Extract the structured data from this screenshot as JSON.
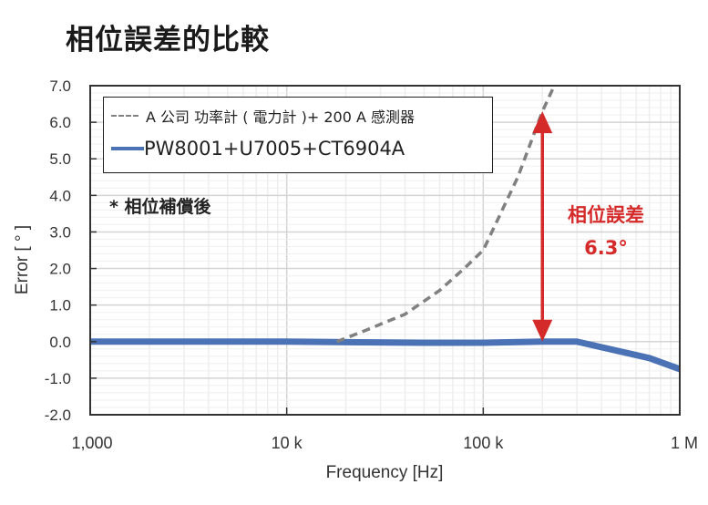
{
  "title": "相位誤差的比較",
  "note": "* 相位補償後",
  "annotation": {
    "label": "相位誤差",
    "value": "6.3°",
    "color": "#d42a2a"
  },
  "legend": [
    {
      "label": "A 公司 功率計 ( 電力計 )+ 200 A 感測器",
      "style": "dashed",
      "color": "#808080"
    },
    {
      "label": "PW8001+U7005+CT6904A",
      "style": "solid",
      "color": "#4a72b5"
    }
  ],
  "axes": {
    "xlabel": "Frequency [Hz]",
    "ylabel": "Error [ ° ]",
    "xticks": [
      "1,000",
      "10 k",
      "100 k",
      "1 M"
    ],
    "yticks": [
      "7.0",
      "6.0",
      "5.0",
      "4.0",
      "3.0",
      "2.0",
      "1.0",
      "0.0",
      "-1.0",
      "-2.0"
    ]
  },
  "chart_data": {
    "type": "line",
    "title": "相位誤差的比較",
    "xlabel": "Frequency [Hz]",
    "ylabel": "Error [ ° ]",
    "xscale": "log",
    "xlim": [
      1000,
      1000000
    ],
    "ylim": [
      -2.0,
      7.0
    ],
    "x_tick_labels": [
      "1,000",
      "10 k",
      "100 k",
      "1 M"
    ],
    "y_tick_labels": [
      "7.0",
      "6.0",
      "5.0",
      "4.0",
      "3.0",
      "2.0",
      "1.0",
      "0.0",
      "-1.0",
      "-2.0"
    ],
    "grid": true,
    "legend_position": "upper left",
    "series": [
      {
        "name": "A 公司 功率計 ( 電力計 )+ 200 A 感測器",
        "style": "dashed",
        "color": "#808080",
        "x": [
          18000,
          25000,
          40000,
          60000,
          80000,
          100000,
          150000,
          200000,
          230000
        ],
        "y": [
          0.0,
          0.3,
          0.75,
          1.4,
          2.0,
          2.5,
          4.5,
          6.3,
          7.0
        ]
      },
      {
        "name": "PW8001+U7005+CT6904A",
        "style": "solid",
        "color": "#4a72b5",
        "x": [
          1000,
          10000,
          50000,
          100000,
          200000,
          300000,
          700000,
          1000000
        ],
        "y": [
          0.0,
          0.0,
          -0.03,
          -0.03,
          0.0,
          0.0,
          -0.45,
          -0.75
        ]
      }
    ],
    "annotations": [
      {
        "text": "相位誤差 6.3°",
        "type": "double-arrow",
        "x": 200000,
        "y_from": 0.0,
        "y_to": 6.3,
        "color": "#d42a2a"
      },
      {
        "text": "* 相位補償後"
      }
    ]
  }
}
